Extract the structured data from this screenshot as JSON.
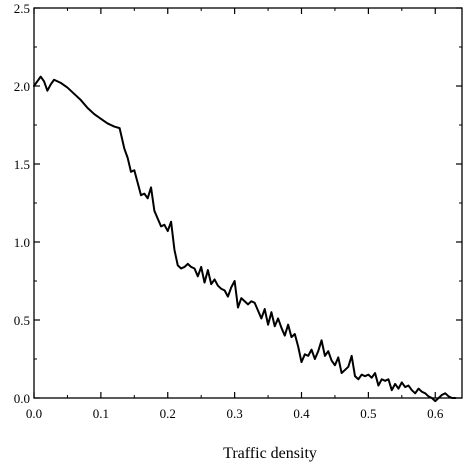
{
  "chart_data": {
    "type": "line",
    "title": "",
    "xlabel": "Traffic density",
    "ylabel": "",
    "xlim": [
      0.0,
      0.64
    ],
    "ylim": [
      0.0,
      2.5
    ],
    "x_ticks": [
      "0.0",
      "0.1",
      "0.2",
      "0.3",
      "0.4",
      "0.5",
      "0.6"
    ],
    "y_ticks": [
      "0.0",
      "0.5",
      "1.0",
      "1.5",
      "2.0",
      "2.5"
    ],
    "grid": false,
    "line_color": "#000000",
    "series": [
      {
        "x": [
          0.0,
          0.005,
          0.01,
          0.015,
          0.02,
          0.025,
          0.03,
          0.04,
          0.05,
          0.06,
          0.07,
          0.08,
          0.09,
          0.1,
          0.11,
          0.12,
          0.128,
          0.135,
          0.14,
          0.145,
          0.15,
          0.155,
          0.16,
          0.165,
          0.17,
          0.175,
          0.18,
          0.185,
          0.19,
          0.195,
          0.2,
          0.205,
          0.21,
          0.215,
          0.22,
          0.225,
          0.23,
          0.235,
          0.24,
          0.245,
          0.25,
          0.255,
          0.26,
          0.265,
          0.27,
          0.275,
          0.28,
          0.285,
          0.29,
          0.295,
          0.3,
          0.305,
          0.31,
          0.315,
          0.32,
          0.325,
          0.33,
          0.335,
          0.34,
          0.345,
          0.35,
          0.355,
          0.36,
          0.365,
          0.37,
          0.375,
          0.38,
          0.385,
          0.39,
          0.395,
          0.4,
          0.405,
          0.41,
          0.415,
          0.42,
          0.425,
          0.43,
          0.435,
          0.44,
          0.445,
          0.45,
          0.455,
          0.46,
          0.465,
          0.47,
          0.475,
          0.48,
          0.485,
          0.49,
          0.495,
          0.5,
          0.505,
          0.51,
          0.515,
          0.52,
          0.525,
          0.53,
          0.535,
          0.54,
          0.545,
          0.55,
          0.555,
          0.56,
          0.565,
          0.57,
          0.575,
          0.58,
          0.585,
          0.59,
          0.595,
          0.6,
          0.605,
          0.61,
          0.615,
          0.62,
          0.625,
          0.63
        ],
        "y": [
          2.0,
          2.03,
          2.06,
          2.03,
          1.97,
          2.01,
          2.04,
          2.02,
          1.99,
          1.95,
          1.91,
          1.86,
          1.82,
          1.79,
          1.76,
          1.74,
          1.73,
          1.6,
          1.54,
          1.45,
          1.46,
          1.38,
          1.3,
          1.31,
          1.28,
          1.35,
          1.2,
          1.15,
          1.1,
          1.11,
          1.07,
          1.13,
          0.95,
          0.85,
          0.83,
          0.84,
          0.86,
          0.84,
          0.83,
          0.78,
          0.84,
          0.74,
          0.82,
          0.73,
          0.76,
          0.72,
          0.7,
          0.69,
          0.65,
          0.71,
          0.75,
          0.58,
          0.64,
          0.62,
          0.6,
          0.62,
          0.61,
          0.56,
          0.51,
          0.57,
          0.47,
          0.55,
          0.46,
          0.51,
          0.45,
          0.4,
          0.47,
          0.39,
          0.41,
          0.33,
          0.23,
          0.28,
          0.27,
          0.31,
          0.25,
          0.3,
          0.37,
          0.27,
          0.3,
          0.24,
          0.21,
          0.26,
          0.16,
          0.18,
          0.2,
          0.27,
          0.14,
          0.12,
          0.15,
          0.14,
          0.15,
          0.13,
          0.16,
          0.08,
          0.12,
          0.11,
          0.12,
          0.05,
          0.09,
          0.06,
          0.1,
          0.07,
          0.08,
          0.05,
          0.03,
          0.06,
          0.04,
          0.03,
          0.01,
          0.0,
          -0.02,
          0.0,
          0.02,
          0.03,
          0.01,
          0.0,
          0.0
        ]
      }
    ]
  }
}
